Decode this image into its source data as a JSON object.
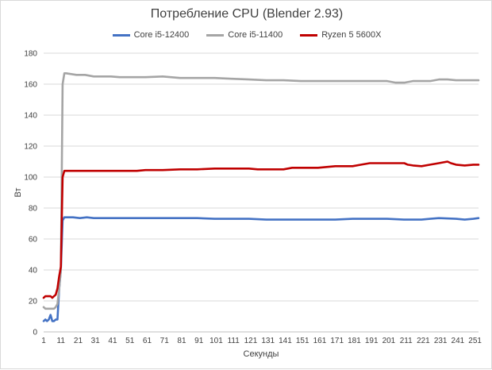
{
  "chart_data": {
    "type": "line",
    "title": "Потребление CPU (Blender 2.93)",
    "xlabel": "Секунды",
    "ylabel": "Вт",
    "ylim": [
      0,
      180
    ],
    "yticks": [
      0,
      20,
      40,
      60,
      80,
      100,
      120,
      140,
      160,
      180
    ],
    "xlim": [
      1,
      253
    ],
    "xticks": [
      1,
      11,
      21,
      31,
      41,
      51,
      61,
      71,
      81,
      91,
      101,
      111,
      121,
      131,
      141,
      151,
      161,
      171,
      181,
      191,
      201,
      211,
      221,
      231,
      241,
      251
    ],
    "grid": "horizontal",
    "legend": "top",
    "series": [
      {
        "name": "Core i5-12400",
        "color": "#4472c4",
        "points": [
          [
            1,
            7
          ],
          [
            2,
            8
          ],
          [
            3,
            7
          ],
          [
            4,
            8
          ],
          [
            5,
            11
          ],
          [
            6,
            7
          ],
          [
            7,
            7
          ],
          [
            8,
            8
          ],
          [
            9,
            8
          ],
          [
            10,
            28
          ],
          [
            11,
            40
          ],
          [
            12,
            72
          ],
          [
            13,
            74
          ],
          [
            14,
            74
          ],
          [
            18,
            74
          ],
          [
            22,
            73.5
          ],
          [
            26,
            74
          ],
          [
            30,
            73.5
          ],
          [
            40,
            73.5
          ],
          [
            50,
            73.5
          ],
          [
            60,
            73.5
          ],
          [
            70,
            73.5
          ],
          [
            80,
            73.5
          ],
          [
            90,
            73.5
          ],
          [
            100,
            73
          ],
          [
            110,
            73
          ],
          [
            120,
            73
          ],
          [
            130,
            72.5
          ],
          [
            140,
            72.5
          ],
          [
            150,
            72.5
          ],
          [
            160,
            72.5
          ],
          [
            170,
            72.5
          ],
          [
            180,
            73
          ],
          [
            190,
            73
          ],
          [
            200,
            73
          ],
          [
            210,
            72.5
          ],
          [
            215,
            72.5
          ],
          [
            220,
            72.5
          ],
          [
            225,
            73
          ],
          [
            230,
            73.5
          ],
          [
            240,
            73
          ],
          [
            245,
            72.5
          ],
          [
            250,
            73
          ],
          [
            253,
            73.5
          ]
        ]
      },
      {
        "name": "Core i5-11400",
        "color": "#a5a5a5",
        "points": [
          [
            1,
            16
          ],
          [
            2,
            15
          ],
          [
            3,
            15
          ],
          [
            4,
            15
          ],
          [
            5,
            15
          ],
          [
            6,
            15
          ],
          [
            7,
            15
          ],
          [
            8,
            16
          ],
          [
            9,
            18
          ],
          [
            10,
            28
          ],
          [
            11,
            40
          ],
          [
            12,
            160
          ],
          [
            13,
            167
          ],
          [
            14,
            167
          ],
          [
            17,
            166.5
          ],
          [
            20,
            166
          ],
          [
            25,
            166
          ],
          [
            30,
            165
          ],
          [
            35,
            165
          ],
          [
            40,
            165
          ],
          [
            45,
            164.5
          ],
          [
            50,
            164.5
          ],
          [
            60,
            164.5
          ],
          [
            70,
            165
          ],
          [
            80,
            164
          ],
          [
            90,
            164
          ],
          [
            100,
            164
          ],
          [
            110,
            163.5
          ],
          [
            120,
            163
          ],
          [
            130,
            162.5
          ],
          [
            140,
            162.5
          ],
          [
            150,
            162
          ],
          [
            160,
            162
          ],
          [
            170,
            162
          ],
          [
            180,
            162
          ],
          [
            190,
            162
          ],
          [
            200,
            162
          ],
          [
            205,
            161
          ],
          [
            210,
            161
          ],
          [
            215,
            162
          ],
          [
            220,
            162
          ],
          [
            225,
            162
          ],
          [
            230,
            163
          ],
          [
            235,
            163
          ],
          [
            240,
            162.5
          ],
          [
            245,
            162.5
          ],
          [
            250,
            162.5
          ],
          [
            253,
            162.5
          ]
        ]
      },
      {
        "name": "Ryzen 5 5600X",
        "color": "#c00000",
        "points": [
          [
            1,
            22
          ],
          [
            2,
            23
          ],
          [
            3,
            23
          ],
          [
            4,
            23
          ],
          [
            5,
            23
          ],
          [
            6,
            22
          ],
          [
            7,
            23
          ],
          [
            8,
            24
          ],
          [
            9,
            28
          ],
          [
            10,
            36
          ],
          [
            11,
            42
          ],
          [
            12,
            100
          ],
          [
            13,
            104
          ],
          [
            14,
            104
          ],
          [
            20,
            104
          ],
          [
            30,
            104
          ],
          [
            40,
            104
          ],
          [
            50,
            104
          ],
          [
            55,
            104
          ],
          [
            60,
            104.5
          ],
          [
            70,
            104.5
          ],
          [
            80,
            105
          ],
          [
            90,
            105
          ],
          [
            100,
            105.5
          ],
          [
            110,
            105.5
          ],
          [
            120,
            105.5
          ],
          [
            125,
            105
          ],
          [
            130,
            105
          ],
          [
            140,
            105
          ],
          [
            145,
            106
          ],
          [
            150,
            106
          ],
          [
            160,
            106
          ],
          [
            165,
            106.5
          ],
          [
            170,
            107
          ],
          [
            180,
            107
          ],
          [
            185,
            108
          ],
          [
            190,
            109
          ],
          [
            195,
            109
          ],
          [
            200,
            109
          ],
          [
            205,
            109
          ],
          [
            210,
            109
          ],
          [
            212,
            108
          ],
          [
            215,
            107.5
          ],
          [
            220,
            107
          ],
          [
            225,
            108
          ],
          [
            230,
            109
          ],
          [
            235,
            110
          ],
          [
            237,
            109
          ],
          [
            240,
            108
          ],
          [
            245,
            107.5
          ],
          [
            250,
            108
          ],
          [
            253,
            108
          ]
        ]
      }
    ]
  }
}
